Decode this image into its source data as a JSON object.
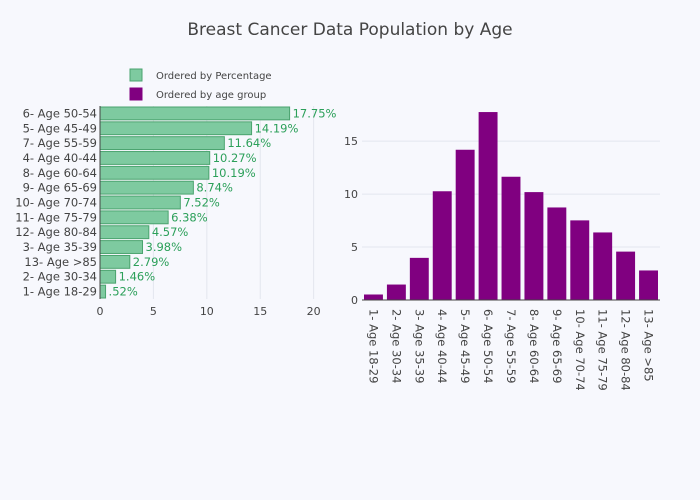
{
  "title": "Breast Cancer Data Population by Age",
  "legend": {
    "items": [
      {
        "label": "Ordered by Percentage",
        "color": "#7ecaa0",
        "border": "#4aa36e"
      },
      {
        "label": "Ordered by age group",
        "color": "#800080",
        "border": "#800080"
      }
    ]
  },
  "chart_data": [
    {
      "type": "bar",
      "orientation": "horizontal",
      "series_name": "Ordered by Percentage",
      "color": "#7ecaa0",
      "categories": [
        "1- Age 18-29",
        "2- Age 30-34",
        "13- Age >85",
        "3- Age 35-39",
        "12- Age 80-84",
        "11- Age 75-79",
        "10- Age 70-74",
        "9- Age 65-69",
        "8- Age 60-64",
        "4- Age 40-44",
        "7- Age 55-59",
        "5- Age 45-49",
        "6- Age 50-54"
      ],
      "values": [
        0.52,
        1.46,
        2.79,
        3.98,
        4.57,
        6.38,
        7.52,
        8.74,
        10.19,
        10.27,
        11.64,
        14.19,
        17.75
      ],
      "labels": [
        ".52%",
        "1.46%",
        "2.79%",
        "3.98%",
        "4.57%",
        "6.38%",
        "7.52%",
        "8.74%",
        "10.19%",
        "10.27%",
        "11.64%",
        "14.19%",
        "17.75%"
      ],
      "xlim": [
        0,
        22
      ],
      "xticks": [
        "0",
        "5",
        "10",
        "15",
        "20"
      ],
      "grid": true
    },
    {
      "type": "bar",
      "orientation": "vertical",
      "series_name": "Ordered by age group",
      "color": "#800080",
      "categories": [
        "1- Age 18-29",
        "2- Age 30-34",
        "3- Age 35-39",
        "4- Age 40-44",
        "5- Age 45-49",
        "6- Age 50-54",
        "7- Age 55-59",
        "8- Age 60-64",
        "9- Age 65-69",
        "10- Age 70-74",
        "11- Age 75-79",
        "12- Age 80-84",
        "13- Age >85"
      ],
      "values": [
        0.52,
        1.46,
        3.98,
        10.27,
        14.19,
        17.75,
        11.64,
        10.19,
        8.74,
        7.52,
        6.38,
        4.57,
        2.79
      ],
      "ylim": [
        0,
        18.7
      ],
      "yticks": [
        "0",
        "5",
        "10",
        "15"
      ],
      "grid": true
    }
  ]
}
